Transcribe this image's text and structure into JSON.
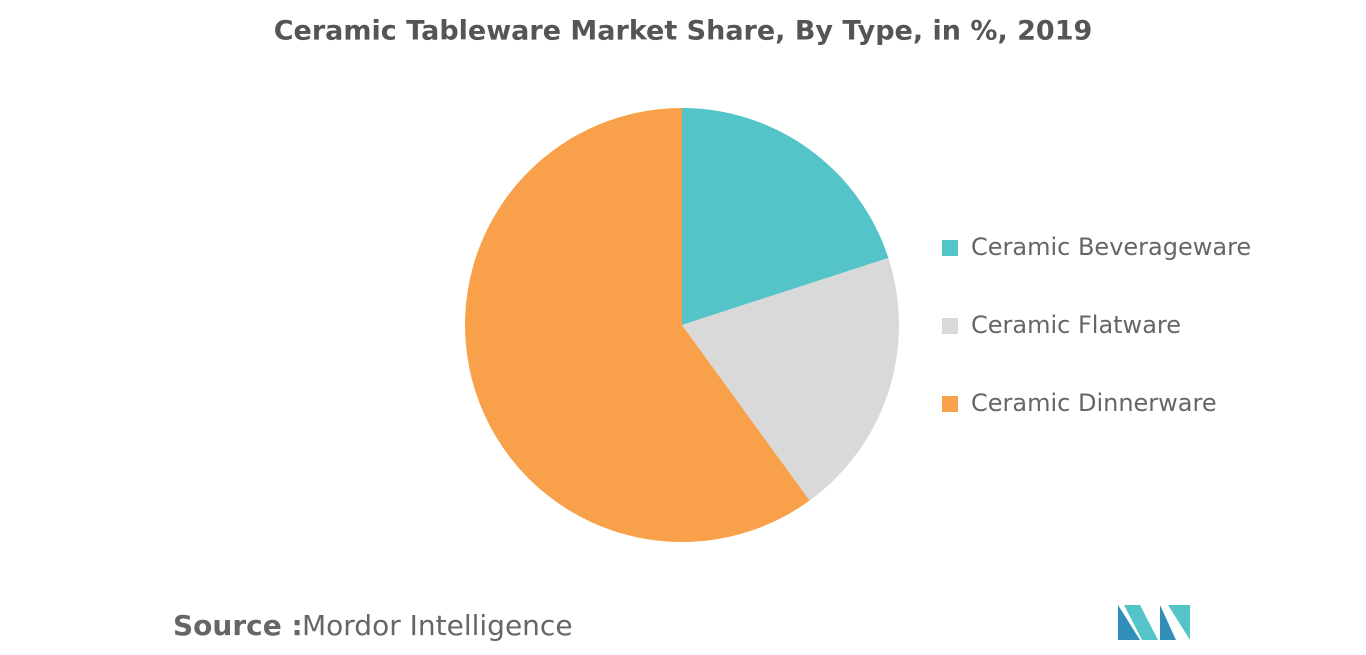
{
  "chart_data": {
    "type": "pie",
    "title": "Ceramic Tableware Market Share, By Type, in %, 2019",
    "categories": [
      "Ceramic Beverageware",
      "Ceramic Flatware",
      "Ceramic Dinnerware"
    ],
    "values": [
      20,
      20,
      60
    ],
    "colors": [
      "#55c4c9",
      "#d9d9d9",
      "#f9a04a"
    ],
    "legend": "right",
    "source_label": "Source :",
    "source": "Mordor Intelligence"
  }
}
